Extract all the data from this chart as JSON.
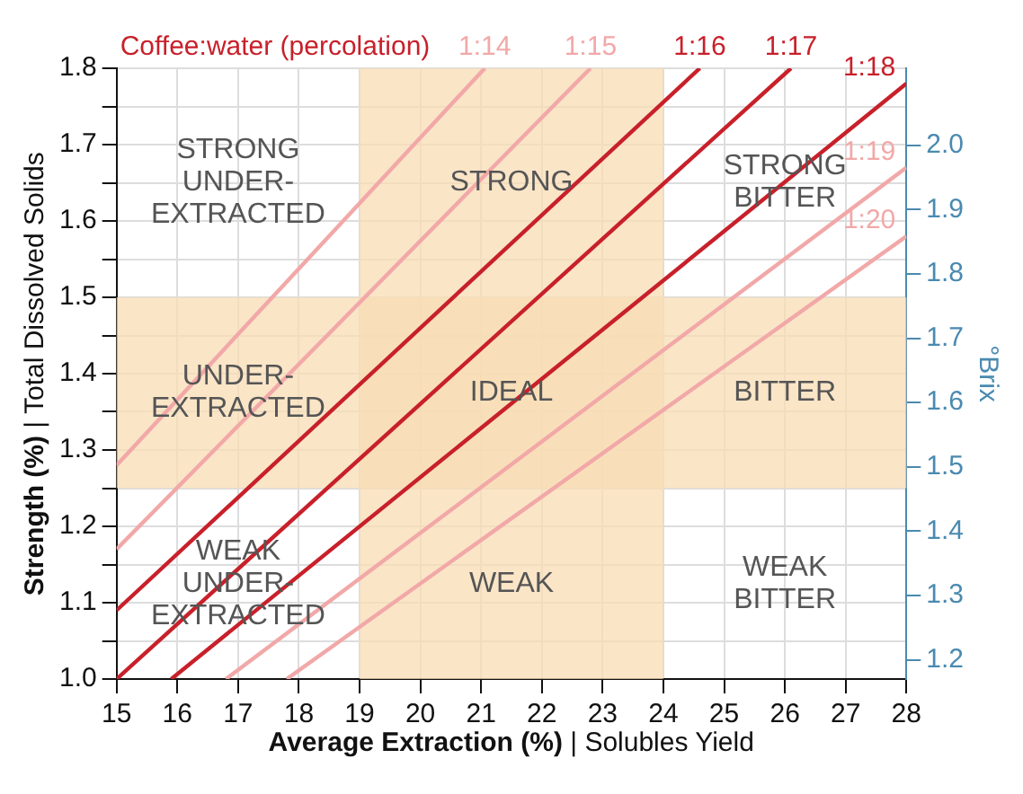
{
  "chart_data": {
    "type": "line",
    "title": "Coffee:water (percolation)",
    "xlabel": "Average Extraction (%) | Solubles Yield",
    "ylabel": "Strength (%) | Total Dissolved Solids",
    "y2label": "°Brix",
    "xlim": [
      15,
      28
    ],
    "xticks": [
      15,
      16,
      17,
      18,
      19,
      20,
      21,
      22,
      23,
      24,
      25,
      26,
      27,
      28
    ],
    "ylim": [
      1.0,
      1.8
    ],
    "yticks": [
      {
        "value": 1.0,
        "label": "1.0"
      },
      {
        "value": 1.05,
        "label": null
      },
      {
        "value": 1.1,
        "label": "1.1"
      },
      {
        "value": 1.15,
        "label": null
      },
      {
        "value": 1.2,
        "label": "1.2"
      },
      {
        "value": 1.25,
        "label": null
      },
      {
        "value": 1.3,
        "label": "1.3"
      },
      {
        "value": 1.35,
        "label": null
      },
      {
        "value": 1.4,
        "label": "1.4"
      },
      {
        "value": 1.45,
        "label": null
      },
      {
        "value": 1.5,
        "label": "1.5"
      },
      {
        "value": 1.55,
        "label": null
      },
      {
        "value": 1.6,
        "label": "1.6"
      },
      {
        "value": 1.65,
        "label": null
      },
      {
        "value": 1.7,
        "label": "1.7"
      },
      {
        "value": 1.75,
        "label": null
      },
      {
        "value": 1.8,
        "label": "1.8"
      }
    ],
    "y2lim": [
      1.17,
      2.12
    ],
    "y2ticks": [
      1.2,
      1.3,
      1.4,
      1.5,
      1.6,
      1.7,
      1.8,
      1.9,
      {
        "value": 2.0,
        "label": "2.0"
      }
    ],
    "grid": true,
    "legend": false,
    "marker": "none",
    "line_style": "solid",
    "series": [
      {
        "name": "1:14",
        "color": "#f2a8a8",
        "x": [
          15,
          21.06
        ],
        "values": [
          1.28,
          1.8
        ]
      },
      {
        "name": "1:15",
        "color": "#f2a8a8",
        "x": [
          15,
          22.8
        ],
        "values": [
          1.17,
          1.8
        ]
      },
      {
        "name": "1:16",
        "color": "#c8202a",
        "x": [
          15,
          24.6
        ],
        "values": [
          1.09,
          1.8
        ]
      },
      {
        "name": "1:17",
        "color": "#c8202a",
        "x": [
          15,
          26.1
        ],
        "values": [
          1.0,
          1.8
        ]
      },
      {
        "name": "1:18",
        "color": "#c8202a",
        "x": [
          15.9,
          28
        ],
        "values": [
          1.0,
          1.78
        ]
      },
      {
        "name": "1:19",
        "color": "#f2a8a8",
        "x": [
          16.8,
          28
        ],
        "values": [
          1.0,
          1.67
        ]
      },
      {
        "name": "1:20",
        "color": "#f2a8a8",
        "x": [
          17.8,
          28
        ],
        "values": [
          1.0,
          1.58
        ]
      }
    ],
    "bands": [
      {
        "axis": "x",
        "from": 19,
        "to": 24,
        "color": "#f8dcb4"
      },
      {
        "axis": "y",
        "from": 1.25,
        "to": 1.5,
        "color": "#f8dcb4"
      }
    ],
    "annotations": [
      "STRONG\nUNDER-\nEXTRACTED",
      "STRONG",
      "STRONG\nBITTER",
      "UNDER-\nEXTRACTED",
      "IDEAL",
      "BITTER",
      "WEAK\nUNDER-\nEXTRACTED",
      "WEAK",
      "WEAK\nBITTER"
    ]
  }
}
